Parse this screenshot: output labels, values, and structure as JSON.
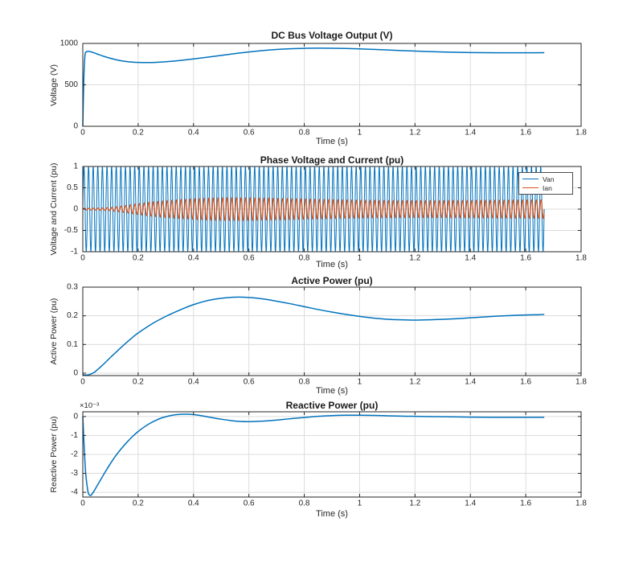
{
  "colors": {
    "line_blue": "#0072BD",
    "line_orange": "#D95319",
    "grid": "#dcdcdc",
    "axis": "#262626",
    "tick_label": "#262626",
    "title": "#1a1a1a",
    "background": "#ffffff",
    "legend_border": "#4d4d4d"
  },
  "chart_data": [
    {
      "type": "line",
      "title": "DC Bus Voltage Output (V)",
      "xlabel": "Time (s)",
      "ylabel": "Voltage (V)",
      "xlim": [
        0,
        1.8
      ],
      "ylim": [
        0,
        1000
      ],
      "xticks": {
        "values": [
          0,
          0.2,
          0.4,
          0.6,
          0.8,
          1,
          1.2,
          1.4,
          1.6,
          1.8
        ],
        "labels": [
          "0",
          "0.2",
          "0.4",
          "0.6",
          "0.8",
          "1",
          "1.2",
          "1.4",
          "1.6",
          "1.8"
        ]
      },
      "yticks": {
        "values": [
          0,
          500,
          1000
        ],
        "labels": [
          "0",
          "500",
          "1000"
        ]
      },
      "grid": true,
      "series": [
        {
          "color": "#0072BD",
          "width": 1.5,
          "points": [
            [
              0,
              0
            ],
            [
              0.004,
              600
            ],
            [
              0.008,
              860
            ],
            [
              0.012,
              895
            ],
            [
              0.018,
              905
            ],
            [
              0.03,
              898
            ],
            [
              0.05,
              875
            ],
            [
              0.08,
              840
            ],
            [
              0.11,
              812
            ],
            [
              0.14,
              790
            ],
            [
              0.17,
              777
            ],
            [
              0.2,
              771
            ],
            [
              0.23,
              769
            ],
            [
              0.26,
              771
            ],
            [
              0.3,
              779
            ],
            [
              0.35,
              794
            ],
            [
              0.4,
              813
            ],
            [
              0.45,
              834
            ],
            [
              0.5,
              856
            ],
            [
              0.55,
              877
            ],
            [
              0.6,
              897
            ],
            [
              0.65,
              914
            ],
            [
              0.7,
              927
            ],
            [
              0.75,
              936
            ],
            [
              0.8,
              941
            ],
            [
              0.85,
              943
            ],
            [
              0.9,
              942
            ],
            [
              0.95,
              939
            ],
            [
              1.0,
              934
            ],
            [
              1.05,
              928
            ],
            [
              1.1,
              921
            ],
            [
              1.15,
              914
            ],
            [
              1.2,
              908
            ],
            [
              1.25,
              902
            ],
            [
              1.3,
              897
            ],
            [
              1.35,
              893
            ],
            [
              1.4,
              890
            ],
            [
              1.45,
              888
            ],
            [
              1.5,
              887
            ],
            [
              1.55,
              887
            ],
            [
              1.6,
              887
            ],
            [
              1.667,
              888
            ]
          ]
        }
      ]
    },
    {
      "type": "line",
      "title": "Phase Voltage and Current (pu)",
      "xlabel": "Time (s)",
      "ylabel": "Voltage and Current (pu)",
      "xlim": [
        0,
        1.8
      ],
      "ylim": [
        -1,
        1
      ],
      "xticks": {
        "values": [
          0,
          0.2,
          0.4,
          0.6,
          0.8,
          1,
          1.2,
          1.4,
          1.6,
          1.8
        ],
        "labels": [
          "0",
          "0.2",
          "0.4",
          "0.6",
          "0.8",
          "1",
          "1.2",
          "1.4",
          "1.6",
          "1.8"
        ]
      },
      "yticks": {
        "values": [
          -1,
          -0.5,
          0,
          0.5,
          1
        ],
        "labels": [
          "-1",
          "-0.5",
          "0",
          "0.5",
          "1"
        ]
      },
      "grid": true,
      "legend": {
        "position": "northeast"
      },
      "series": [
        {
          "name": "Van",
          "color": "#0072BD",
          "width": 1,
          "waveform": {
            "type": "sine",
            "frequency_hz": 60,
            "t_end": 1.667,
            "phase_deg": 0,
            "amplitude": 1
          }
        },
        {
          "name": "Ian",
          "color": "#D95319",
          "width": 1.2,
          "waveform": {
            "type": "sine",
            "frequency_hz": 60,
            "t_end": 1.667,
            "phase_deg": -25,
            "amplitude_envelope": [
              [
                0,
                0.02
              ],
              [
                0.05,
                0.025
              ],
              [
                0.08,
                0.03
              ],
              [
                0.1,
                0.04
              ],
              [
                0.12,
                0.055
              ],
              [
                0.15,
                0.08
              ],
              [
                0.18,
                0.11
              ],
              [
                0.2,
                0.13
              ],
              [
                0.25,
                0.17
              ],
              [
                0.3,
                0.2
              ],
              [
                0.35,
                0.225
              ],
              [
                0.4,
                0.245
              ],
              [
                0.45,
                0.26
              ],
              [
                0.5,
                0.268
              ],
              [
                0.55,
                0.27
              ],
              [
                0.6,
                0.268
              ],
              [
                0.7,
                0.255
              ],
              [
                0.8,
                0.24
              ],
              [
                0.9,
                0.225
              ],
              [
                1.0,
                0.212
              ],
              [
                1.1,
                0.205
              ],
              [
                1.2,
                0.202
              ],
              [
                1.3,
                0.203
              ],
              [
                1.4,
                0.207
              ],
              [
                1.5,
                0.212
              ],
              [
                1.6,
                0.217
              ],
              [
                1.667,
                0.22
              ]
            ]
          }
        }
      ]
    },
    {
      "type": "line",
      "title": "Active Power (pu)",
      "xlabel": "Time (s)",
      "ylabel": "Active Power (pu)",
      "xlim": [
        0,
        1.8
      ],
      "ylim": [
        -0.0085,
        0.3
      ],
      "xticks": {
        "values": [
          0,
          0.2,
          0.4,
          0.6,
          0.8,
          1,
          1.2,
          1.4,
          1.6,
          1.8
        ],
        "labels": [
          "0",
          "0.2",
          "0.4",
          "0.6",
          "0.8",
          "1",
          "1.2",
          "1.4",
          "1.6",
          "1.8"
        ]
      },
      "yticks": {
        "values": [
          0,
          0.1,
          0.2,
          0.3
        ],
        "labels": [
          "0",
          "0.1",
          "0.2",
          "0.3"
        ]
      },
      "grid": true,
      "series": [
        {
          "color": "#0072BD",
          "width": 1.5,
          "points": [
            [
              0,
              -0.006
            ],
            [
              0.02,
              -0.006
            ],
            [
              0.04,
              0.002
            ],
            [
              0.06,
              0.018
            ],
            [
              0.08,
              0.036
            ],
            [
              0.1,
              0.055
            ],
            [
              0.12,
              0.073
            ],
            [
              0.15,
              0.1
            ],
            [
              0.18,
              0.125
            ],
            [
              0.2,
              0.14
            ],
            [
              0.25,
              0.172
            ],
            [
              0.3,
              0.198
            ],
            [
              0.35,
              0.22
            ],
            [
              0.4,
              0.239
            ],
            [
              0.45,
              0.253
            ],
            [
              0.5,
              0.261
            ],
            [
              0.55,
              0.265
            ],
            [
              0.6,
              0.264
            ],
            [
              0.65,
              0.259
            ],
            [
              0.7,
              0.251
            ],
            [
              0.75,
              0.242
            ],
            [
              0.8,
              0.232
            ],
            [
              0.85,
              0.222
            ],
            [
              0.9,
              0.213
            ],
            [
              0.95,
              0.205
            ],
            [
              1.0,
              0.198
            ],
            [
              1.05,
              0.192
            ],
            [
              1.1,
              0.188
            ],
            [
              1.15,
              0.186
            ],
            [
              1.2,
              0.185
            ],
            [
              1.25,
              0.186
            ],
            [
              1.3,
              0.188
            ],
            [
              1.35,
              0.19
            ],
            [
              1.4,
              0.193
            ],
            [
              1.45,
              0.196
            ],
            [
              1.5,
              0.199
            ],
            [
              1.55,
              0.201
            ],
            [
              1.6,
              0.203
            ],
            [
              1.65,
              0.204
            ],
            [
              1.667,
              0.205
            ]
          ]
        }
      ]
    },
    {
      "type": "line",
      "title": "Reactive Power (pu)",
      "xlabel": "Time (s)",
      "ylabel": "Reactive Power (pu)",
      "y_exponent_label": "×10⁻³",
      "xlim": [
        0,
        1.8
      ],
      "ylim": [
        -0.00425,
        0.00025
      ],
      "xticks": {
        "values": [
          0,
          0.2,
          0.4,
          0.6,
          0.8,
          1,
          1.2,
          1.4,
          1.6,
          1.8
        ],
        "labels": [
          "0",
          "0.2",
          "0.4",
          "0.6",
          "0.8",
          "1",
          "1.2",
          "1.4",
          "1.6",
          "1.8"
        ]
      },
      "yticks": {
        "values": [
          -0.004,
          -0.003,
          -0.002,
          -0.001,
          0
        ],
        "labels": [
          "-4",
          "-3",
          "-2",
          "-1",
          "0"
        ]
      },
      "grid": true,
      "series": [
        {
          "color": "#0072BD",
          "width": 1.5,
          "points": [
            [
              0,
              0
            ],
            [
              0.005,
              -0.0016
            ],
            [
              0.01,
              -0.0029
            ],
            [
              0.015,
              -0.0036
            ],
            [
              0.02,
              -0.00405
            ],
            [
              0.025,
              -0.00415
            ],
            [
              0.03,
              -0.00415
            ],
            [
              0.04,
              -0.00395
            ],
            [
              0.05,
              -0.0037
            ],
            [
              0.06,
              -0.00345
            ],
            [
              0.08,
              -0.00295
            ],
            [
              0.1,
              -0.00248
            ],
            [
              0.12,
              -0.00205
            ],
            [
              0.14,
              -0.00168
            ],
            [
              0.16,
              -0.00135
            ],
            [
              0.18,
              -0.00105
            ],
            [
              0.2,
              -0.00079
            ],
            [
              0.22,
              -0.00057
            ],
            [
              0.24,
              -0.00038
            ],
            [
              0.26,
              -0.00023
            ],
            [
              0.28,
              -0.0001
            ],
            [
              0.3,
              -1e-05
            ],
            [
              0.32,
              6e-05
            ],
            [
              0.34,
              0.0001
            ],
            [
              0.37,
              0.00012
            ],
            [
              0.4,
              0.0001
            ],
            [
              0.43,
              4e-05
            ],
            [
              0.46,
              -4e-05
            ],
            [
              0.5,
              -0.00014
            ],
            [
              0.54,
              -0.00022
            ],
            [
              0.57,
              -0.00026
            ],
            [
              0.6,
              -0.00027
            ],
            [
              0.64,
              -0.00025
            ],
            [
              0.68,
              -0.00021
            ],
            [
              0.72,
              -0.00016
            ],
            [
              0.76,
              -0.0001
            ],
            [
              0.8,
              -5e-05
            ],
            [
              0.85,
              1e-05
            ],
            [
              0.9,
              5e-05
            ],
            [
              0.95,
              7e-05
            ],
            [
              1.0,
              7e-05
            ],
            [
              1.05,
              6e-05
            ],
            [
              1.1,
              4e-05
            ],
            [
              1.15,
              2e-05
            ],
            [
              1.2,
              1e-05
            ],
            [
              1.3,
              -1e-05
            ],
            [
              1.4,
              -3e-05
            ],
            [
              1.5,
              -4e-05
            ],
            [
              1.6,
              -4e-05
            ],
            [
              1.667,
              -4e-05
            ]
          ]
        }
      ]
    }
  ]
}
